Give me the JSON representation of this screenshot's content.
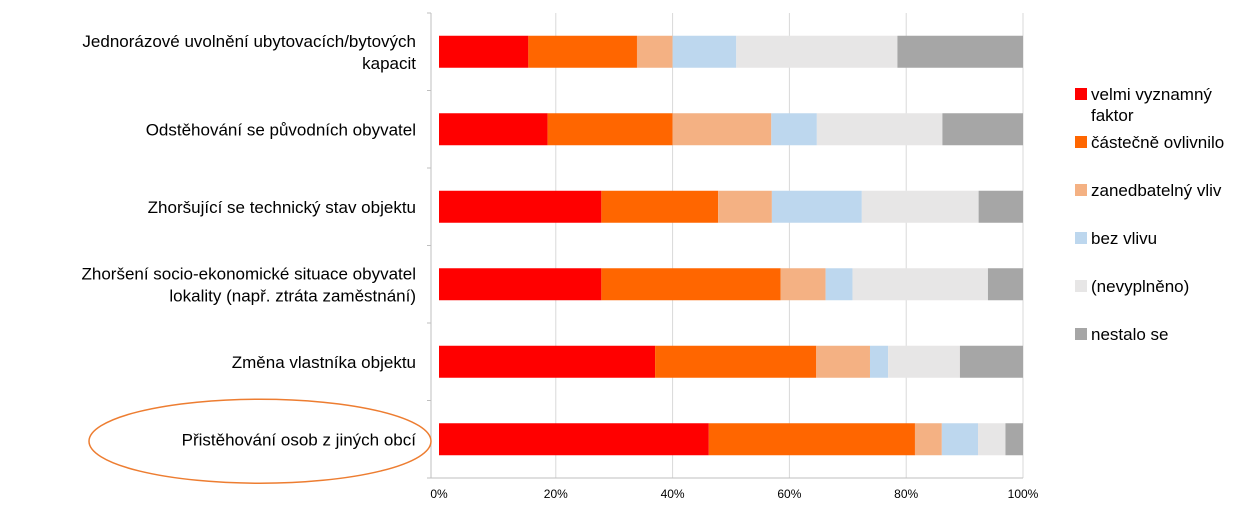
{
  "chart_data": {
    "type": "bar",
    "orientation": "horizontal",
    "stacked": "percent",
    "xlim": [
      0,
      100
    ],
    "x_ticks": [
      "0%",
      "20%",
      "40%",
      "60%",
      "80%",
      "100%"
    ],
    "grid": "vertical",
    "legend_position": "right",
    "categories": [
      [
        "Jednorázové uvolnění ubytovacích/bytových",
        "kapacit"
      ],
      [
        "Odstěhování se původních obyvatel"
      ],
      [
        "Zhoršující se technický stav objektu"
      ],
      [
        "Zhoršení socio-ekonomické situace obyvatel",
        "lokality (např. ztráta zaměstnání)"
      ],
      [
        "Změna vlastníka objektu"
      ],
      [
        "Přistěhování osob z jiných obcí"
      ]
    ],
    "highlighted_category": 5,
    "series": [
      {
        "name": [
          "velmi vyznamný",
          "faktor"
        ],
        "color": "#ff0000",
        "values": [
          15.3,
          18.6,
          27.8,
          27.8,
          37.0,
          46.2
        ]
      },
      {
        "name": [
          "částečně ovlivnilo"
        ],
        "color": "#ff6600",
        "values": [
          18.6,
          21.4,
          20.0,
          30.7,
          27.6,
          35.3
        ]
      },
      {
        "name": [
          "zanedbatelný vliv"
        ],
        "color": "#f4b183",
        "values": [
          6.1,
          16.9,
          9.2,
          7.7,
          9.2,
          4.6
        ]
      },
      {
        "name": [
          "bez vlivu"
        ],
        "color": "#bdd7ee",
        "values": [
          10.9,
          7.8,
          15.4,
          4.6,
          3.1,
          6.2
        ]
      },
      {
        "name": [
          "(nevyplněno)"
        ],
        "color": "#e7e6e6",
        "values": [
          27.6,
          21.5,
          20.0,
          23.2,
          12.3,
          4.7
        ]
      },
      {
        "name": [
          "nestalo se"
        ],
        "color": "#a6a6a6",
        "values": [
          21.5,
          13.8,
          7.6,
          6.0,
          10.8,
          3.0
        ]
      }
    ]
  }
}
